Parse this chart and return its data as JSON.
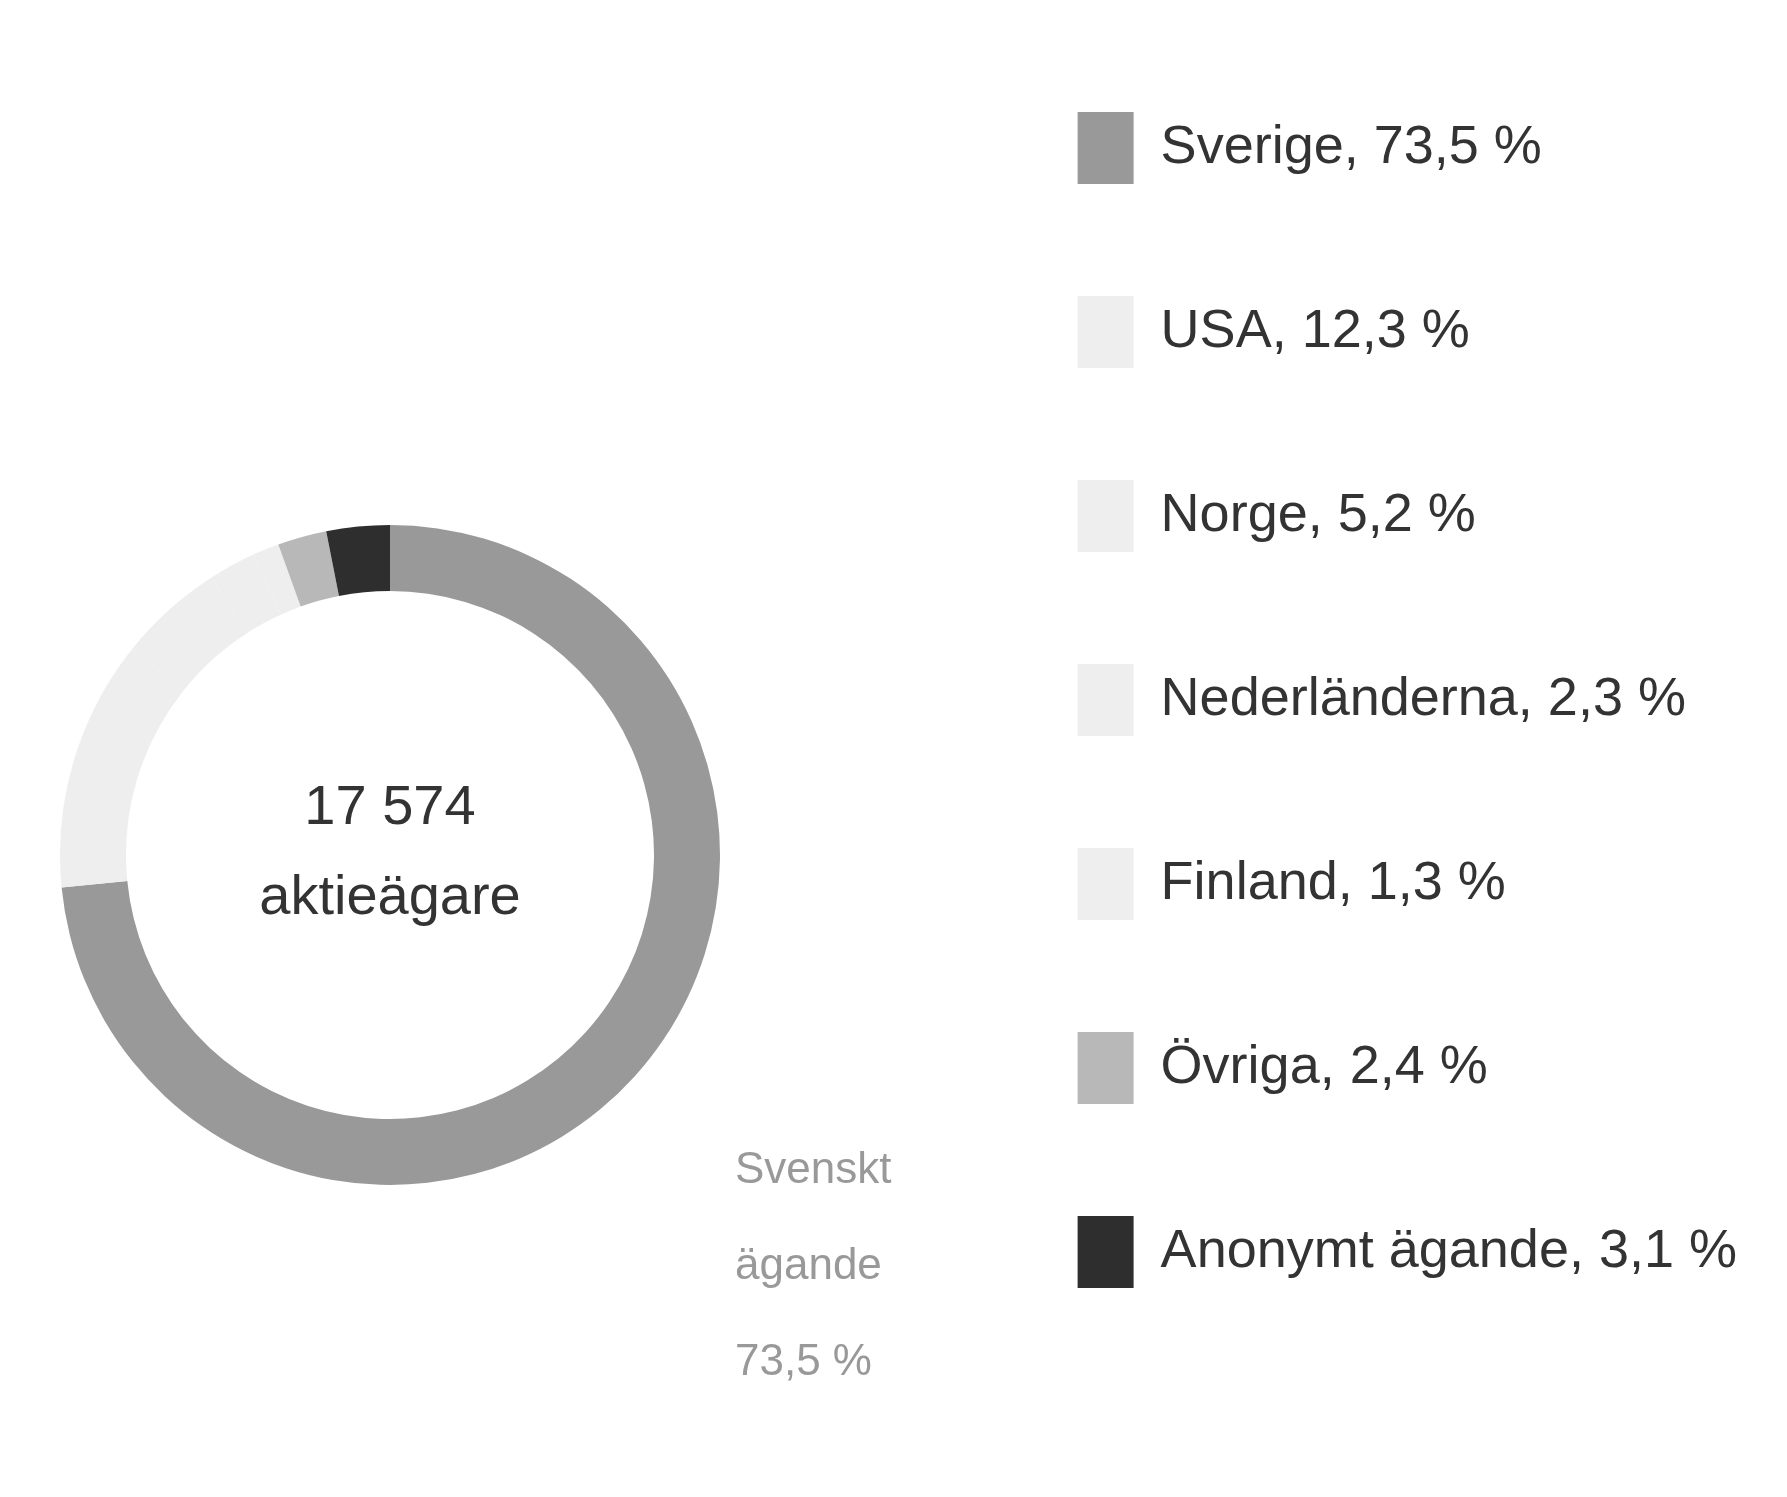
{
  "chart_data": {
    "type": "donut",
    "categories": [
      "Sverige, 73,5 %",
      "USA, 12,3 %",
      "Norge, 5,2 %",
      "Nederländerna, 2,3 %",
      "Finland, 1,3 %",
      "Övriga, 2,4 %",
      "Anonymt ägande, 3,1 %"
    ],
    "values": [
      73.5,
      12.3,
      5.2,
      2.3,
      1.3,
      2.4,
      3.1
    ],
    "colors": [
      "#999999",
      "#eeeeee",
      "#eeeeee",
      "#eeeeee",
      "#eeeeee",
      "#b8b8b8",
      "#2e2e2e"
    ],
    "legend": "right",
    "annotations": [
      "17 574 aktieägare",
      "Svenskt ägande 73,5 %"
    ]
  }
}
